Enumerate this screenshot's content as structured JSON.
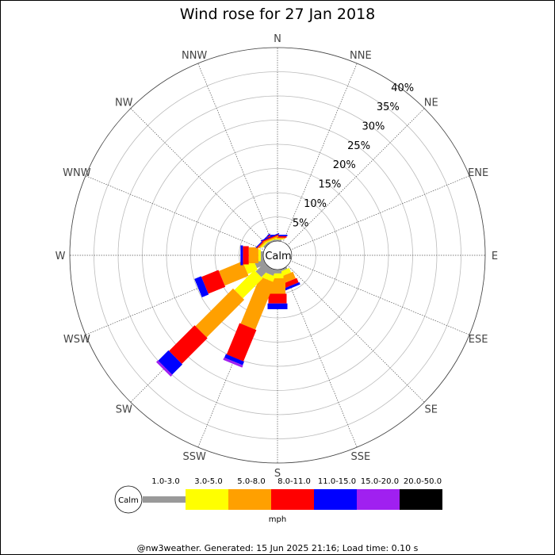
{
  "chart_data": {
    "type": "wind-rose",
    "title": "Wind rose for 27 Jan 2018",
    "directions": [
      "N",
      "NNE",
      "NE",
      "ENE",
      "E",
      "ESE",
      "SE",
      "SSE",
      "S",
      "SSW",
      "SW",
      "WSW",
      "W",
      "WNW",
      "NW",
      "NNW"
    ],
    "radial_ticks": [
      "5%",
      "10%",
      "15%",
      "20%",
      "25%",
      "30%",
      "35%",
      "40%"
    ],
    "radial_max": 40,
    "calm_label": "Calm",
    "units": "mph",
    "speed_bins": [
      "1.0-3.0",
      "3.0-5.0",
      "5.0-8.0",
      "8.0-11.0",
      "11.0-15.0",
      "15.0-20.0",
      "20.0-50.0"
    ],
    "bin_colors": [
      "#999999",
      "#ffff00",
      "#ffa000",
      "#ff0000",
      "#0000ff",
      "#a020f0",
      "#000000"
    ],
    "series": [
      {
        "direction": "N",
        "values": [
          0.3,
          0.2,
          0.2,
          0.3,
          0.3,
          0,
          0
        ]
      },
      {
        "direction": "NNE",
        "values": [
          0,
          0,
          0,
          0,
          0,
          0,
          0
        ]
      },
      {
        "direction": "NE",
        "values": [
          0,
          0,
          0,
          0,
          0,
          0,
          0
        ]
      },
      {
        "direction": "ENE",
        "values": [
          0,
          0,
          0,
          0,
          0,
          0,
          0
        ]
      },
      {
        "direction": "E",
        "values": [
          0,
          0,
          0,
          0,
          0,
          0,
          0
        ]
      },
      {
        "direction": "ESE",
        "values": [
          0,
          0,
          0,
          0,
          0,
          0,
          0
        ]
      },
      {
        "direction": "SE",
        "values": [
          0,
          0,
          0,
          0,
          0,
          0,
          0
        ]
      },
      {
        "direction": "SSE",
        "values": [
          0.4,
          1.0,
          1.5,
          1.0,
          0.5,
          0,
          0
        ]
      },
      {
        "direction": "S",
        "values": [
          0.8,
          1.0,
          3.2,
          2.0,
          1.2,
          0,
          0
        ]
      },
      {
        "direction": "SSW",
        "values": [
          1.3,
          1.2,
          10.5,
          7.0,
          0.8,
          0.5,
          0
        ]
      },
      {
        "direction": "SW",
        "values": [
          2.6,
          5.8,
          11.0,
          7.5,
          3.0,
          0.5,
          0
        ]
      },
      {
        "direction": "WSW",
        "values": [
          2.0,
          2.2,
          5.3,
          3.8,
          1.5,
          0,
          0
        ]
      },
      {
        "direction": "W",
        "values": [
          0.5,
          0.5,
          2.0,
          1.2,
          0.5,
          0,
          0
        ]
      },
      {
        "direction": "WNW",
        "values": [
          0,
          0,
          0,
          0,
          0,
          0,
          0
        ]
      },
      {
        "direction": "NW",
        "values": [
          0.4,
          0.3,
          0.3,
          0.2,
          0.2,
          0,
          0
        ]
      },
      {
        "direction": "NNW",
        "values": [
          0.3,
          0.2,
          0.3,
          0.2,
          0.2,
          0,
          0
        ]
      }
    ]
  },
  "footer": "@nw3weather. Generated: 15 Jun 2025 21:16; Load time: 0.10 s"
}
